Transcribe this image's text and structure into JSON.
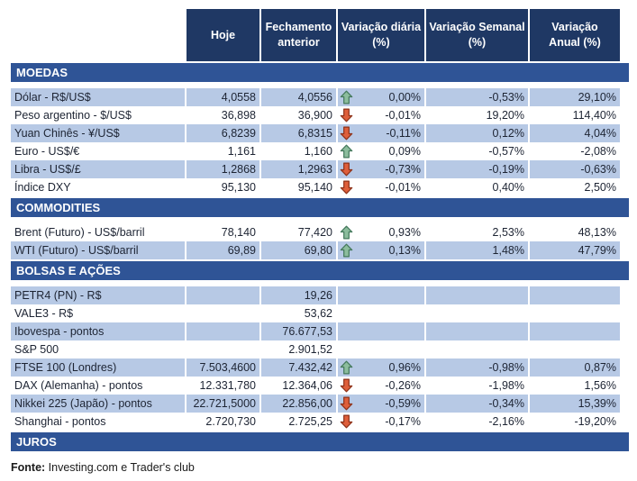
{
  "chart_data": {
    "type": "table",
    "columns": [
      "Hoje",
      "Fechamento\nanterior",
      "Variação diária\n(%)",
      "Variação Semanal\n(%)",
      "Variação\nAnual (%)"
    ],
    "sections": [
      {
        "title": "MOEDAS",
        "rows": [
          {
            "label": "Dólar - R$/US$",
            "today": "4,0558",
            "prev": "4,0556",
            "arrow": "up",
            "daily": "0,00%",
            "weekly": "-0,53%",
            "annual": "29,10%",
            "shaded": true
          },
          {
            "label": "Peso argentino - $/US$",
            "today": "36,898",
            "prev": "36,900",
            "arrow": "down",
            "daily": "-0,01%",
            "weekly": "19,20%",
            "annual": "114,40%",
            "shaded": false
          },
          {
            "label": "Yuan Chinês - ¥/US$",
            "today": "6,8239",
            "prev": "6,8315",
            "arrow": "down",
            "daily": "-0,11%",
            "weekly": "0,12%",
            "annual": "4,04%",
            "shaded": true
          },
          {
            "label": "Euro - US$/€",
            "today": "1,161",
            "prev": "1,160",
            "arrow": "up",
            "daily": "0,09%",
            "weekly": "-0,57%",
            "annual": "-2,08%",
            "shaded": false
          },
          {
            "label": "Libra - US$/£",
            "today": "1,2868",
            "prev": "1,2963",
            "arrow": "down",
            "daily": "-0,73%",
            "weekly": "-0,19%",
            "annual": "-0,63%",
            "shaded": true
          },
          {
            "label": "Índice DXY",
            "today": "95,130",
            "prev": "95,140",
            "arrow": "down",
            "daily": "-0,01%",
            "weekly": "0,40%",
            "annual": "2,50%",
            "shaded": false
          }
        ]
      },
      {
        "title": "COMMODITIES",
        "rows": [
          {
            "label": "Brent (Futuro) - US$/barril",
            "today": "78,140",
            "prev": "77,420",
            "arrow": "up",
            "daily": "0,93%",
            "weekly": "2,53%",
            "annual": "48,13%",
            "shaded": false
          },
          {
            "label": "WTI (Futuro) - US$/barril",
            "today": "69,89",
            "prev": "69,80",
            "arrow": "up",
            "daily": "0,13%",
            "weekly": "1,48%",
            "annual": "47,79%",
            "shaded": true
          }
        ]
      },
      {
        "title": "BOLSAS E AÇÕES",
        "rows": [
          {
            "label": "PETR4 (PN) - R$",
            "today": "",
            "prev": "19,26",
            "arrow": "none",
            "daily": "",
            "weekly": "",
            "annual": "",
            "shaded": true
          },
          {
            "label": "VALE3 - R$",
            "today": "",
            "prev": "53,62",
            "arrow": "none",
            "daily": "",
            "weekly": "",
            "annual": "",
            "shaded": false
          },
          {
            "label": "Ibovespa - pontos",
            "today": "",
            "prev": "76.677,53",
            "arrow": "none",
            "daily": "",
            "weekly": "",
            "annual": "",
            "shaded": true
          },
          {
            "label": "S&P 500",
            "today": "",
            "prev": "2.901,52",
            "arrow": "none",
            "daily": "",
            "weekly": "",
            "annual": "",
            "shaded": false
          },
          {
            "label": "FTSE 100 (Londres)",
            "today": "7.503,4600",
            "prev": "7.432,42",
            "arrow": "up",
            "daily": "0,96%",
            "weekly": "-0,98%",
            "annual": "0,87%",
            "shaded": true
          },
          {
            "label": "DAX (Alemanha) - pontos",
            "today": "12.331,780",
            "prev": "12.364,06",
            "arrow": "down",
            "daily": "-0,26%",
            "weekly": "-1,98%",
            "annual": "1,56%",
            "shaded": false
          },
          {
            "label": "Nikkei 225 (Japão) - pontos",
            "today": "22.721,5000",
            "prev": "22.856,00",
            "arrow": "down",
            "daily": "-0,59%",
            "weekly": "-0,34%",
            "annual": "15,39%",
            "shaded": true
          },
          {
            "label": "Shanghai - pontos",
            "today": "2.720,730",
            "prev": "2.725,25",
            "arrow": "down",
            "daily": "-0,17%",
            "weekly": "-2,16%",
            "annual": "-19,20%",
            "shaded": false
          }
        ]
      },
      {
        "title": "JUROS",
        "rows": []
      }
    ]
  },
  "footer": {
    "prefix": "Fonte:",
    "text": " Investing.com e Trader's club"
  },
  "colors": {
    "header_bg": "#1F3864",
    "section_bg": "#2F5496",
    "row_shaded": "#B7C9E5",
    "text": "#1D2433",
    "arrow_up_fill": "#8CBD9D",
    "arrow_up_border": "#44795C",
    "arrow_down_fill": "#DF5F3B",
    "arrow_down_border": "#8E3118"
  }
}
